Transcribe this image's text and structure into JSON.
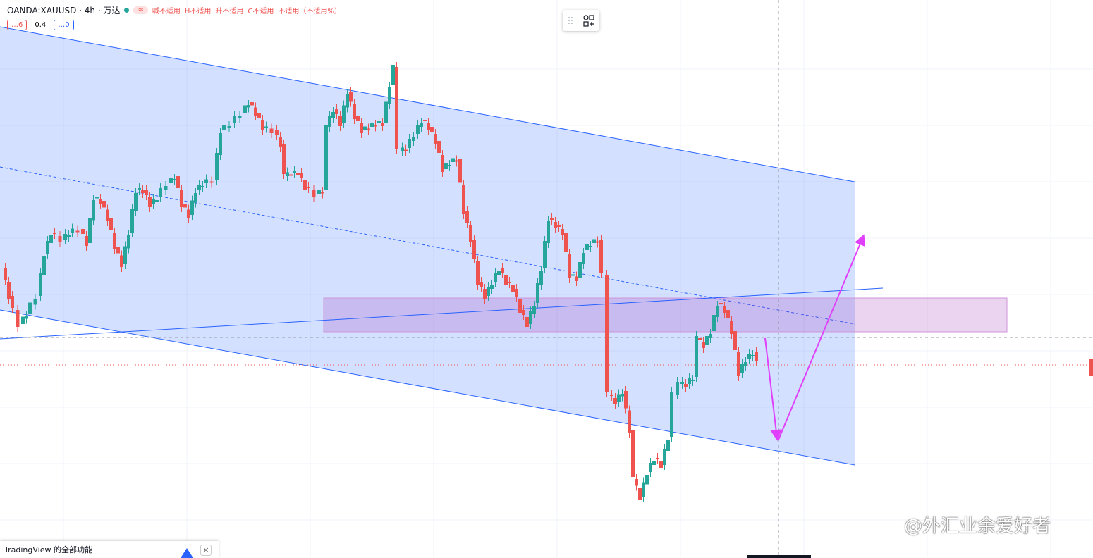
{
  "header": {
    "symbol": "OANDA:XAUUSD · 4h · 万达",
    "status": "≈",
    "ohlc": [
      "喊不适用",
      "H不适用",
      "升不适用",
      "C不适用",
      "不适用（不适用%）"
    ]
  },
  "indicators": [
    "…6",
    "0.4",
    "…0"
  ],
  "banner": {
    "text": "TradingView 的全部功能"
  },
  "watermark": "@外汇业余爱好者"
}
